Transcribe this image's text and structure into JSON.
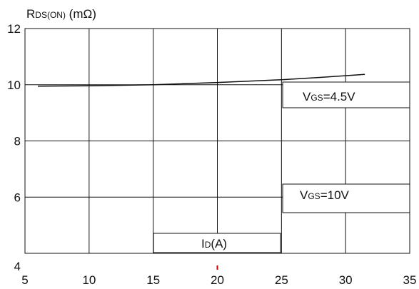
{
  "chart_data": {
    "type": "line",
    "ylabel_main": "R",
    "ylabel_sub": "DS(ON)",
    "ylabel_unit": " (mΩ)",
    "xlabel_main": "I",
    "xlabel_sub": "D",
    "xlabel_unit": "(A)",
    "xlim": [
      5,
      35
    ],
    "ylim": [
      4,
      12
    ],
    "xticks": [
      5,
      10,
      15,
      20,
      25,
      30,
      35
    ],
    "xtick_labels": [
      "5",
      "10",
      "15",
      "20",
      "25",
      "30",
      "35"
    ],
    "yticks": [
      4,
      6,
      8,
      10,
      12
    ],
    "ytick_labels": [
      "4",
      "6",
      "8",
      "10",
      "12"
    ],
    "grid": true,
    "annotations": [
      {
        "main": "V",
        "sub": "GS",
        "rest": "=4.5V"
      },
      {
        "main": "V",
        "sub": "GS",
        "rest": "=10V"
      }
    ],
    "series": [
      {
        "x": [
          6,
          10,
          15,
          20,
          25,
          28,
          31.5
        ],
        "y": [
          9.95,
          9.96,
          10.0,
          10.08,
          10.18,
          10.26,
          10.37
        ]
      }
    ],
    "colors": {
      "line": "#111111",
      "grid": "#111111",
      "marker": "#cc0000"
    }
  }
}
